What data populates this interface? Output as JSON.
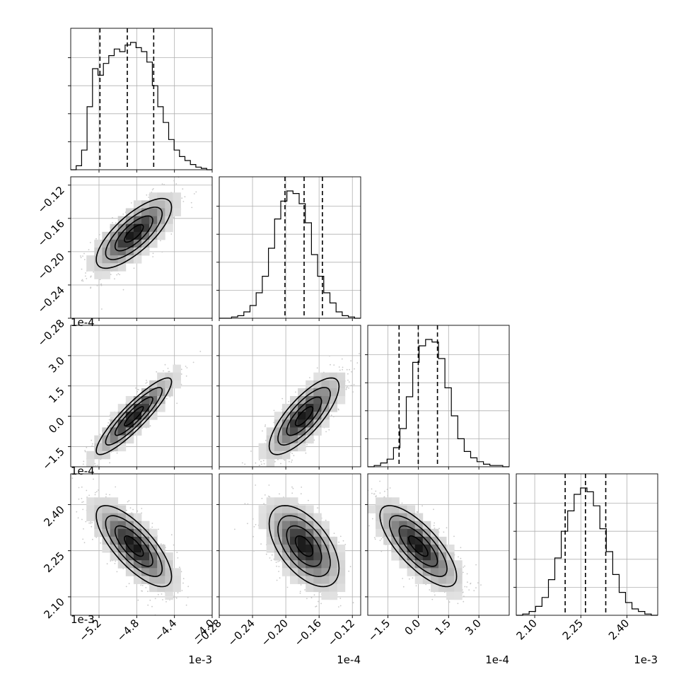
{
  "chart_data": {
    "type": "corner",
    "grid": true,
    "parameters": [
      {
        "offset_label": "1e-3",
        "lim": [
          -5.5,
          -4.0
        ],
        "ticks": [
          "−5.2",
          "−4.8",
          "−4.4",
          "−4.0"
        ],
        "tick_values": [
          -5.2,
          -4.8,
          -4.4,
          -4.0
        ],
        "mean": -4.83,
        "sigma": 0.2,
        "quantiles": [
          -5.19,
          -4.9,
          -4.62
        ]
      },
      {
        "offset_label": "1e-4",
        "lim": [
          -0.28,
          -0.11
        ],
        "ticks": [
          "−0.28",
          "−0.24",
          "−0.20",
          "−0.16",
          "−0.12"
        ],
        "tick_values": [
          -0.28,
          -0.24,
          -0.2,
          -0.16,
          -0.12
        ],
        "mean": -0.178,
        "sigma": 0.021,
        "quantiles": [
          -0.201,
          -0.178,
          -0.156
        ]
      },
      {
        "offset_label": "1e-4",
        "lim": [
          -2.5,
          4.5
        ],
        "ticks": [
          "−1.5",
          "0.0",
          "1.5",
          "3.0"
        ],
        "tick_values": [
          -1.5,
          0.0,
          1.5,
          3.0
        ],
        "mean": 0.0,
        "sigma": 0.95,
        "quantiles": [
          -0.95,
          0.0,
          0.95
        ]
      },
      {
        "offset_label": "1e-3",
        "lim": [
          2.04,
          2.5
        ],
        "ticks": [
          "2.10",
          "2.25",
          "2.40"
        ],
        "tick_values": [
          2.1,
          2.25,
          2.4
        ],
        "mean": 2.265,
        "sigma": 0.066,
        "quantiles": [
          2.199,
          2.265,
          2.331
        ]
      }
    ],
    "correlations": [
      [
        1.0,
        0.75,
        0.9,
        -0.75
      ],
      [
        0.75,
        1.0,
        0.78,
        -0.55
      ],
      [
        0.9,
        0.78,
        1.0,
        -0.75
      ],
      [
        -0.75,
        -0.55,
        -0.75,
        1.0
      ]
    ],
    "histograms": [
      {
        "counts": [
          0,
          0.03,
          0.15,
          0.48,
          0.77,
          0.72,
          0.81,
          0.87,
          0.92,
          0.9,
          0.95,
          0.97,
          0.93,
          0.9,
          0.82,
          0.64,
          0.48,
          0.36,
          0.23,
          0.15,
          0.1,
          0.07,
          0.04,
          0.02,
          0.01,
          0
        ]
      },
      {
        "counts": [
          0,
          0,
          0.01,
          0.02,
          0.05,
          0.1,
          0.2,
          0.33,
          0.55,
          0.78,
          0.92,
          1.0,
          0.98,
          0.9,
          0.75,
          0.5,
          0.33,
          0.2,
          0.12,
          0.05,
          0.02,
          0.01,
          0
        ]
      },
      {
        "counts": [
          0,
          0.01,
          0.03,
          0.06,
          0.15,
          0.3,
          0.55,
          0.82,
          0.95,
          1.0,
          0.98,
          0.85,
          0.62,
          0.4,
          0.22,
          0.12,
          0.07,
          0.04,
          0.02,
          0.01,
          0.01,
          0
        ]
      },
      {
        "counts": [
          0,
          0.01,
          0.03,
          0.07,
          0.14,
          0.28,
          0.45,
          0.66,
          0.82,
          0.95,
          1.0,
          0.97,
          0.86,
          0.68,
          0.5,
          0.32,
          0.18,
          0.1,
          0.05,
          0.03,
          0.01,
          0
        ]
      }
    ]
  }
}
